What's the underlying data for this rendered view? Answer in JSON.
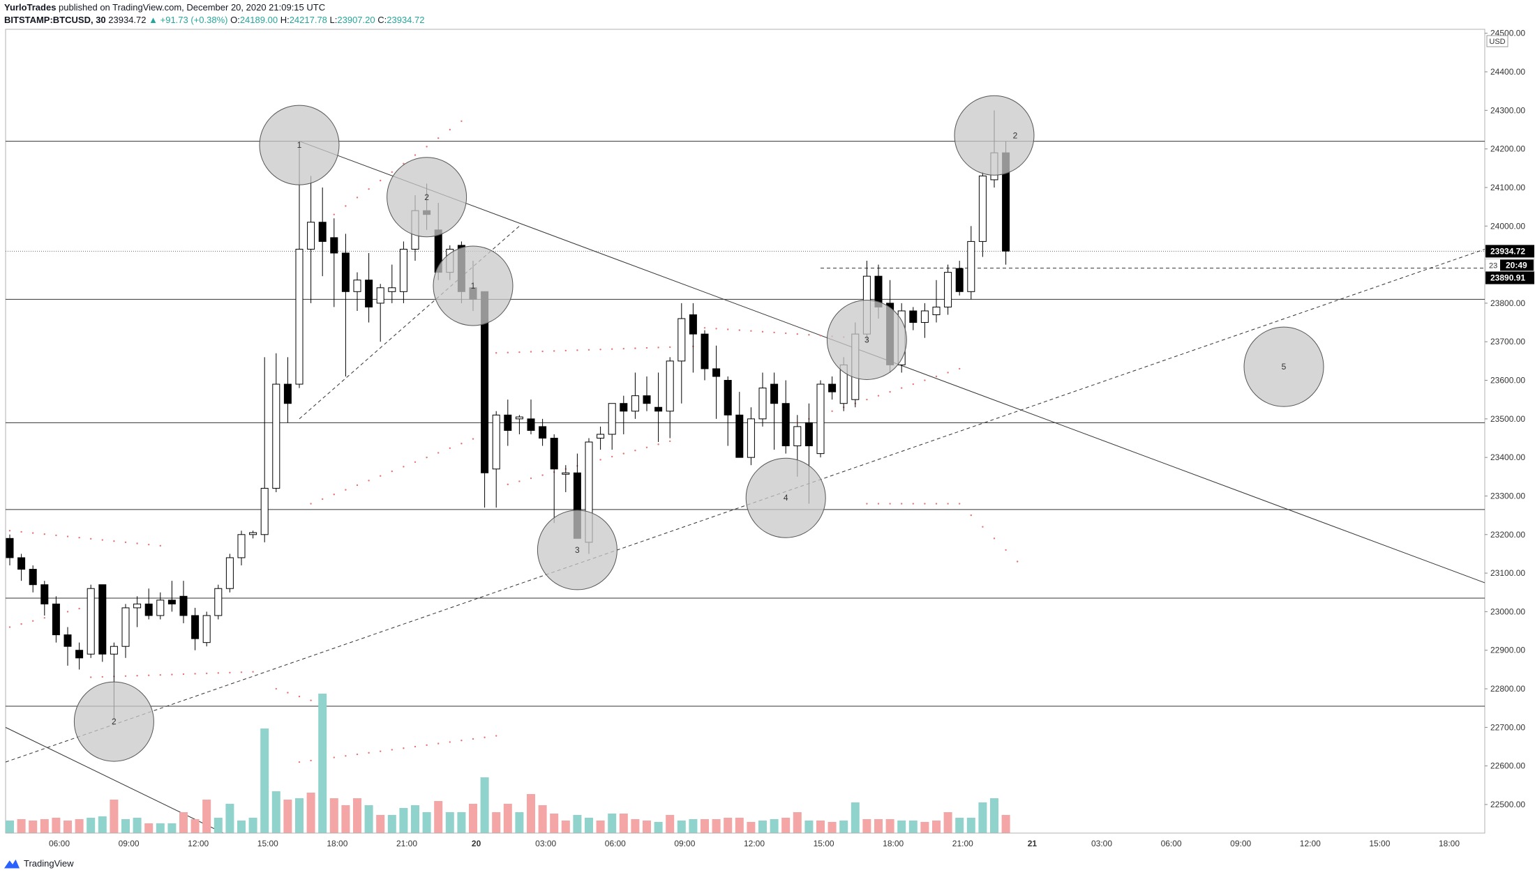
{
  "header": {
    "author": "YurloTrades",
    "published_text": "published on TradingView.com, December 20, 2020 21:09:15 UTC",
    "symbol": "BITSTAMP:BTCUSD, 30",
    "last": "23934.72",
    "change": "▲ +91.73 (+0.38%)",
    "o_label": "O:",
    "o": "24189.00",
    "h_label": "H:",
    "h": "24217.78",
    "l_label": "L:",
    "l": "23907.20",
    "c_label": "C:",
    "c": "23934.72"
  },
  "footer": {
    "brand": "TradingView"
  },
  "colors": {
    "up_candle": "#ffffff",
    "down_candle": "#000000",
    "vol_up": "#8fd3cc",
    "vol_down": "#f4a5a5",
    "sar": "#e57373",
    "circle_fill": "#c8c8c8"
  },
  "chart_data": {
    "type": "candlestick",
    "symbol": "BITSTAMP:BTCUSD",
    "interval": "30",
    "currency": "USD",
    "ylim": [
      22400,
      24500
    ],
    "y_ticks": [
      "24500.00",
      "24400.00",
      "24300.00",
      "24200.00",
      "24100.00",
      "24000.00",
      "23900.00",
      "23800.00",
      "23700.00",
      "23600.00",
      "23500.00",
      "23400.00",
      "23300.00",
      "23200.00",
      "23100.00",
      "23000.00",
      "22900.00",
      "22800.00",
      "22700.00",
      "22600.00",
      "22500.00"
    ],
    "x_ticks": [
      "06:00",
      "09:00",
      "12:00",
      "15:00",
      "18:00",
      "21:00",
      "20",
      "03:00",
      "06:00",
      "09:00",
      "12:00",
      "15:00",
      "18:00",
      "21:00",
      "21",
      "03:00",
      "06:00",
      "09:00",
      "12:00",
      "15:00",
      "18:00"
    ],
    "price_labels": {
      "last": "23934.72",
      "countdown_prefix": "23",
      "countdown": "20:49",
      "level": "23890.91"
    },
    "horizontal_levels": [
      24220,
      23810,
      23490,
      23265,
      23035,
      22755
    ],
    "dotted_level": 23934.72,
    "dashed_level": 23890.91,
    "candles": [
      {
        "t": 0,
        "o": 23190,
        "h": 23200,
        "l": 23120,
        "c": 23140
      },
      {
        "t": 1,
        "o": 23140,
        "h": 23150,
        "l": 23080,
        "c": 23110
      },
      {
        "t": 2,
        "o": 23110,
        "h": 23120,
        "l": 23050,
        "c": 23070
      },
      {
        "t": 3,
        "o": 23070,
        "h": 23080,
        "l": 22990,
        "c": 23020
      },
      {
        "t": 4,
        "o": 23020,
        "h": 23040,
        "l": 22920,
        "c": 22940
      },
      {
        "t": 5,
        "o": 22940,
        "h": 22960,
        "l": 22860,
        "c": 22910
      },
      {
        "t": 6,
        "o": 22900,
        "h": 22920,
        "l": 22850,
        "c": 22880
      },
      {
        "t": 7,
        "o": 22890,
        "h": 23070,
        "l": 22880,
        "c": 23060
      },
      {
        "t": 8,
        "o": 23070,
        "h": 23070,
        "l": 22870,
        "c": 22890
      },
      {
        "t": 9,
        "o": 22890,
        "h": 22920,
        "l": 22720,
        "c": 22910
      },
      {
        "t": 10,
        "o": 22910,
        "h": 23020,
        "l": 22880,
        "c": 23010
      },
      {
        "t": 11,
        "o": 23010,
        "h": 23040,
        "l": 22960,
        "c": 23020
      },
      {
        "t": 12,
        "o": 23020,
        "h": 23060,
        "l": 22980,
        "c": 22990
      },
      {
        "t": 13,
        "o": 22990,
        "h": 23050,
        "l": 22980,
        "c": 23030
      },
      {
        "t": 14,
        "o": 23030,
        "h": 23080,
        "l": 23000,
        "c": 23020
      },
      {
        "t": 15,
        "o": 23040,
        "h": 23080,
        "l": 22970,
        "c": 22990
      },
      {
        "t": 16,
        "o": 22990,
        "h": 23010,
        "l": 22900,
        "c": 22930
      },
      {
        "t": 17,
        "o": 22920,
        "h": 23000,
        "l": 22910,
        "c": 22990
      },
      {
        "t": 18,
        "o": 22990,
        "h": 23070,
        "l": 22980,
        "c": 23060
      },
      {
        "t": 19,
        "o": 23060,
        "h": 23150,
        "l": 23050,
        "c": 23140
      },
      {
        "t": 20,
        "o": 23140,
        "h": 23210,
        "l": 23120,
        "c": 23200
      },
      {
        "t": 21,
        "o": 23200,
        "h": 23210,
        "l": 23190,
        "c": 23205
      },
      {
        "t": 22,
        "o": 23200,
        "h": 23660,
        "l": 23180,
        "c": 23320
      },
      {
        "t": 23,
        "o": 23320,
        "h": 23670,
        "l": 23310,
        "c": 23590
      },
      {
        "t": 24,
        "o": 23590,
        "h": 23660,
        "l": 23490,
        "c": 23540
      },
      {
        "t": 25,
        "o": 23590,
        "h": 24220,
        "l": 23580,
        "c": 23940
      },
      {
        "t": 26,
        "o": 23940,
        "h": 24130,
        "l": 23800,
        "c": 24010
      },
      {
        "t": 27,
        "o": 24010,
        "h": 24100,
        "l": 23870,
        "c": 23960
      },
      {
        "t": 28,
        "o": 23970,
        "h": 24020,
        "l": 23790,
        "c": 23930
      },
      {
        "t": 29,
        "o": 23930,
        "h": 23980,
        "l": 23610,
        "c": 23830
      },
      {
        "t": 30,
        "o": 23830,
        "h": 23880,
        "l": 23780,
        "c": 23860
      },
      {
        "t": 31,
        "o": 23860,
        "h": 23930,
        "l": 23750,
        "c": 23790
      },
      {
        "t": 32,
        "o": 23800,
        "h": 23850,
        "l": 23700,
        "c": 23840
      },
      {
        "t": 33,
        "o": 23830,
        "h": 23900,
        "l": 23800,
        "c": 23840
      },
      {
        "t": 34,
        "o": 23830,
        "h": 23960,
        "l": 23800,
        "c": 23940
      },
      {
        "t": 35,
        "o": 23940,
        "h": 24080,
        "l": 23910,
        "c": 24040
      },
      {
        "t": 36,
        "o": 24040,
        "h": 24110,
        "l": 23990,
        "c": 24030
      },
      {
        "t": 37,
        "o": 23990,
        "h": 24060,
        "l": 23860,
        "c": 23880
      },
      {
        "t": 38,
        "o": 23880,
        "h": 23950,
        "l": 23860,
        "c": 23940
      },
      {
        "t": 39,
        "o": 23950,
        "h": 23960,
        "l": 23800,
        "c": 23830
      },
      {
        "t": 40,
        "o": 23840,
        "h": 23910,
        "l": 23780,
        "c": 23810
      },
      {
        "t": 41,
        "o": 23830,
        "h": 23830,
        "l": 23270,
        "c": 23360
      },
      {
        "t": 42,
        "o": 23370,
        "h": 23520,
        "l": 23270,
        "c": 23510
      },
      {
        "t": 43,
        "o": 23510,
        "h": 23550,
        "l": 23430,
        "c": 23470
      },
      {
        "t": 44,
        "o": 23500,
        "h": 23510,
        "l": 23460,
        "c": 23505
      },
      {
        "t": 45,
        "o": 23500,
        "h": 23550,
        "l": 23460,
        "c": 23470
      },
      {
        "t": 46,
        "o": 23480,
        "h": 23500,
        "l": 23430,
        "c": 23450
      },
      {
        "t": 47,
        "o": 23450,
        "h": 23460,
        "l": 23230,
        "c": 23370
      },
      {
        "t": 48,
        "o": 23360,
        "h": 23380,
        "l": 23310,
        "c": 23360
      },
      {
        "t": 49,
        "o": 23360,
        "h": 23410,
        "l": 23210,
        "c": 23190
      },
      {
        "t": 50,
        "o": 23180,
        "h": 23450,
        "l": 23150,
        "c": 23440
      },
      {
        "t": 51,
        "o": 23450,
        "h": 23480,
        "l": 23420,
        "c": 23460
      },
      {
        "t": 52,
        "o": 23460,
        "h": 23540,
        "l": 23420,
        "c": 23540
      },
      {
        "t": 53,
        "o": 23540,
        "h": 23560,
        "l": 23460,
        "c": 23520
      },
      {
        "t": 54,
        "o": 23520,
        "h": 23620,
        "l": 23500,
        "c": 23560
      },
      {
        "t": 55,
        "o": 23560,
        "h": 23610,
        "l": 23520,
        "c": 23540
      },
      {
        "t": 56,
        "o": 23530,
        "h": 23620,
        "l": 23440,
        "c": 23520
      },
      {
        "t": 57,
        "o": 23520,
        "h": 23660,
        "l": 23450,
        "c": 23650
      },
      {
        "t": 58,
        "o": 23650,
        "h": 23800,
        "l": 23540,
        "c": 23760
      },
      {
        "t": 59,
        "o": 23770,
        "h": 23800,
        "l": 23620,
        "c": 23720
      },
      {
        "t": 60,
        "o": 23720,
        "h": 23730,
        "l": 23600,
        "c": 23630
      },
      {
        "t": 61,
        "o": 23630,
        "h": 23690,
        "l": 23500,
        "c": 23610
      },
      {
        "t": 62,
        "o": 23600,
        "h": 23610,
        "l": 23430,
        "c": 23510
      },
      {
        "t": 63,
        "o": 23510,
        "h": 23570,
        "l": 23400,
        "c": 23400
      },
      {
        "t": 64,
        "o": 23400,
        "h": 23530,
        "l": 23380,
        "c": 23500
      },
      {
        "t": 65,
        "o": 23500,
        "h": 23620,
        "l": 23480,
        "c": 23580
      },
      {
        "t": 66,
        "o": 23590,
        "h": 23620,
        "l": 23420,
        "c": 23540
      },
      {
        "t": 67,
        "o": 23540,
        "h": 23600,
        "l": 23410,
        "c": 23430
      },
      {
        "t": 68,
        "o": 23430,
        "h": 23510,
        "l": 23350,
        "c": 23480
      },
      {
        "t": 69,
        "o": 23490,
        "h": 23540,
        "l": 23280,
        "c": 23430
      },
      {
        "t": 70,
        "o": 23410,
        "h": 23600,
        "l": 23400,
        "c": 23590
      },
      {
        "t": 71,
        "o": 23590,
        "h": 23610,
        "l": 23550,
        "c": 23570
      },
      {
        "t": 72,
        "o": 23540,
        "h": 23660,
        "l": 23520,
        "c": 23640
      },
      {
        "t": 73,
        "o": 23550,
        "h": 23750,
        "l": 23530,
        "c": 23720
      },
      {
        "t": 74,
        "o": 23720,
        "h": 23910,
        "l": 23700,
        "c": 23870
      },
      {
        "t": 75,
        "o": 23870,
        "h": 23900,
        "l": 23760,
        "c": 23790
      },
      {
        "t": 76,
        "o": 23800,
        "h": 23860,
        "l": 23620,
        "c": 23640
      },
      {
        "t": 77,
        "o": 23640,
        "h": 23800,
        "l": 23620,
        "c": 23780
      },
      {
        "t": 78,
        "o": 23780,
        "h": 23790,
        "l": 23730,
        "c": 23750
      },
      {
        "t": 79,
        "o": 23750,
        "h": 23800,
        "l": 23710,
        "c": 23780
      },
      {
        "t": 80,
        "o": 23770,
        "h": 23860,
        "l": 23750,
        "c": 23790
      },
      {
        "t": 81,
        "o": 23790,
        "h": 23900,
        "l": 23770,
        "c": 23880
      },
      {
        "t": 82,
        "o": 23890,
        "h": 23910,
        "l": 23820,
        "c": 23830
      },
      {
        "t": 83,
        "o": 23830,
        "h": 24000,
        "l": 23810,
        "c": 23960
      },
      {
        "t": 84,
        "o": 23960,
        "h": 24140,
        "l": 23920,
        "c": 24130
      },
      {
        "t": 85,
        "o": 24120,
        "h": 24300,
        "l": 24100,
        "c": 24190
      },
      {
        "t": 86,
        "o": 24190,
        "h": 24220,
        "l": 23900,
        "c": 23935
      }
    ],
    "volume": [
      {
        "t": 0,
        "v": 18,
        "up": true
      },
      {
        "t": 1,
        "v": 20,
        "up": false
      },
      {
        "t": 2,
        "v": 18,
        "up": false
      },
      {
        "t": 3,
        "v": 20,
        "up": false
      },
      {
        "t": 4,
        "v": 22,
        "up": false
      },
      {
        "t": 5,
        "v": 18,
        "up": false
      },
      {
        "t": 6,
        "v": 20,
        "up": false
      },
      {
        "t": 7,
        "v": 22,
        "up": true
      },
      {
        "t": 8,
        "v": 24,
        "up": true
      },
      {
        "t": 9,
        "v": 48,
        "up": false
      },
      {
        "t": 10,
        "v": 20,
        "up": true
      },
      {
        "t": 11,
        "v": 22,
        "up": true
      },
      {
        "t": 12,
        "v": 14,
        "up": false
      },
      {
        "t": 13,
        "v": 14,
        "up": true
      },
      {
        "t": 14,
        "v": 14,
        "up": true
      },
      {
        "t": 15,
        "v": 30,
        "up": false
      },
      {
        "t": 16,
        "v": 20,
        "up": false
      },
      {
        "t": 17,
        "v": 48,
        "up": false
      },
      {
        "t": 18,
        "v": 22,
        "up": true
      },
      {
        "t": 19,
        "v": 42,
        "up": true
      },
      {
        "t": 20,
        "v": 18,
        "up": true
      },
      {
        "t": 21,
        "v": 22,
        "up": true
      },
      {
        "t": 22,
        "v": 150,
        "up": true
      },
      {
        "t": 23,
        "v": 60,
        "up": true
      },
      {
        "t": 24,
        "v": 48,
        "up": false
      },
      {
        "t": 25,
        "v": 50,
        "up": true
      },
      {
        "t": 26,
        "v": 58,
        "up": false
      },
      {
        "t": 27,
        "v": 200,
        "up": true
      },
      {
        "t": 28,
        "v": 50,
        "up": false
      },
      {
        "t": 29,
        "v": 40,
        "up": false
      },
      {
        "t": 30,
        "v": 50,
        "up": false
      },
      {
        "t": 31,
        "v": 40,
        "up": true
      },
      {
        "t": 32,
        "v": 26,
        "up": false
      },
      {
        "t": 33,
        "v": 26,
        "up": true
      },
      {
        "t": 34,
        "v": 36,
        "up": true
      },
      {
        "t": 35,
        "v": 40,
        "up": true
      },
      {
        "t": 36,
        "v": 30,
        "up": true
      },
      {
        "t": 37,
        "v": 46,
        "up": false
      },
      {
        "t": 38,
        "v": 30,
        "up": true
      },
      {
        "t": 39,
        "v": 30,
        "up": true
      },
      {
        "t": 40,
        "v": 42,
        "up": false
      },
      {
        "t": 41,
        "v": 80,
        "up": true
      },
      {
        "t": 42,
        "v": 30,
        "up": false
      },
      {
        "t": 43,
        "v": 42,
        "up": false
      },
      {
        "t": 44,
        "v": 30,
        "up": true
      },
      {
        "t": 45,
        "v": 56,
        "up": false
      },
      {
        "t": 46,
        "v": 40,
        "up": false
      },
      {
        "t": 47,
        "v": 28,
        "up": false
      },
      {
        "t": 48,
        "v": 18,
        "up": false
      },
      {
        "t": 49,
        "v": 26,
        "up": true
      },
      {
        "t": 50,
        "v": 22,
        "up": true
      },
      {
        "t": 51,
        "v": 18,
        "up": false
      },
      {
        "t": 52,
        "v": 28,
        "up": true
      },
      {
        "t": 53,
        "v": 28,
        "up": false
      },
      {
        "t": 54,
        "v": 20,
        "up": false
      },
      {
        "t": 55,
        "v": 18,
        "up": false
      },
      {
        "t": 56,
        "v": 16,
        "up": true
      },
      {
        "t": 57,
        "v": 26,
        "up": false
      },
      {
        "t": 58,
        "v": 18,
        "up": true
      },
      {
        "t": 59,
        "v": 20,
        "up": true
      },
      {
        "t": 60,
        "v": 20,
        "up": false
      },
      {
        "t": 61,
        "v": 20,
        "up": false
      },
      {
        "t": 62,
        "v": 22,
        "up": false
      },
      {
        "t": 63,
        "v": 22,
        "up": false
      },
      {
        "t": 64,
        "v": 16,
        "up": false
      },
      {
        "t": 65,
        "v": 18,
        "up": true
      },
      {
        "t": 66,
        "v": 20,
        "up": true
      },
      {
        "t": 67,
        "v": 22,
        "up": false
      },
      {
        "t": 68,
        "v": 30,
        "up": false
      },
      {
        "t": 69,
        "v": 18,
        "up": true
      },
      {
        "t": 70,
        "v": 18,
        "up": false
      },
      {
        "t": 71,
        "v": 16,
        "up": false
      },
      {
        "t": 72,
        "v": 18,
        "up": true
      },
      {
        "t": 73,
        "v": 44,
        "up": true
      },
      {
        "t": 74,
        "v": 20,
        "up": false
      },
      {
        "t": 75,
        "v": 20,
        "up": false
      },
      {
        "t": 76,
        "v": 20,
        "up": false
      },
      {
        "t": 77,
        "v": 18,
        "up": true
      },
      {
        "t": 78,
        "v": 18,
        "up": true
      },
      {
        "t": 79,
        "v": 16,
        "up": false
      },
      {
        "t": 80,
        "v": 18,
        "up": false
      },
      {
        "t": 81,
        "v": 30,
        "up": false
      },
      {
        "t": 82,
        "v": 22,
        "up": true
      },
      {
        "t": 83,
        "v": 22,
        "up": true
      },
      {
        "t": 84,
        "v": 44,
        "up": true
      },
      {
        "t": 85,
        "v": 50,
        "up": true
      },
      {
        "t": 86,
        "v": 26,
        "up": false
      }
    ],
    "circle_markers": [
      {
        "label": "1",
        "t": 25,
        "price": 24210
      },
      {
        "label": "2",
        "t": 36,
        "price": 24075
      },
      {
        "label": "1",
        "t": 40,
        "price": 23845
      },
      {
        "label": "3",
        "t": 49,
        "price": 23160
      },
      {
        "label": "2",
        "t": 9,
        "price": 22715
      },
      {
        "label": "4",
        "t": 67,
        "price": 23295
      },
      {
        "label": "3",
        "t": 74,
        "price": 23705
      },
      {
        "label": "2",
        "t": 85,
        "price": 24235
      },
      {
        "label": "5",
        "t": 110,
        "price": 23635
      }
    ]
  }
}
